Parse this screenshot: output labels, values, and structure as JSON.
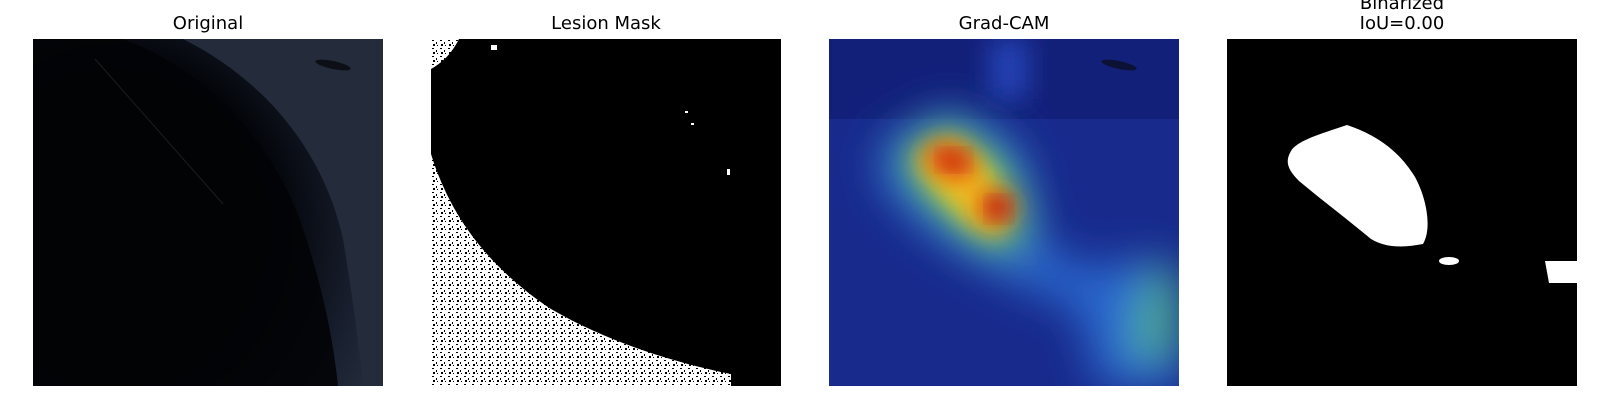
{
  "figure": {
    "panels": [
      {
        "title": "Original",
        "image_alt": "dark dermoscopy image"
      },
      {
        "title": "Lesion Mask",
        "image_alt": "binary lesion mask"
      },
      {
        "title": "Grad-CAM",
        "image_alt": "Grad-CAM heatmap overlay"
      },
      {
        "title_lines": [
          "Binarized",
          "IoU=0.00"
        ],
        "image_alt": "binarized Grad-CAM"
      }
    ]
  },
  "colors": {
    "background": "#ffffff",
    "mask_fg": "#ffffff",
    "mask_bg": "#000000",
    "heat_low": "#1a2aa0",
    "heat_mid": "#2fb8a8",
    "heat_high": "#e02a10"
  }
}
